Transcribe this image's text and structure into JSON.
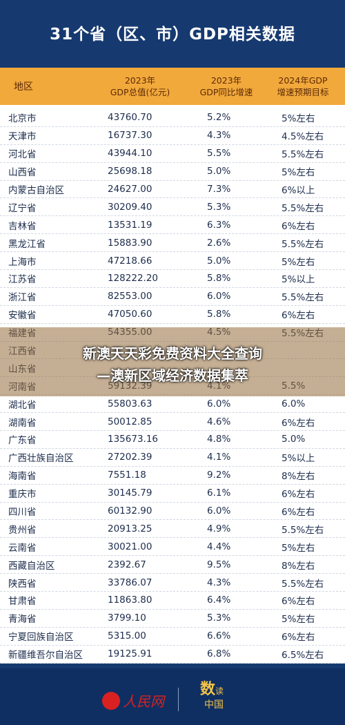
{
  "title": "31个省（区、市）GDP相关数据",
  "headers": {
    "region": "地区",
    "gdp_line1": "2023年",
    "gdp_line2": "GDP总值(亿元)",
    "growth_line1": "2023年",
    "growth_line2": "GDP同比增速",
    "target_line1": "2024年GDP",
    "target_line2": "增速预期目标"
  },
  "rows": [
    {
      "region": "北京市",
      "gdp": "43760.70",
      "growth": "5.2%",
      "target": "5%左右"
    },
    {
      "region": "天津市",
      "gdp": "16737.30",
      "growth": "4.3%",
      "target": "4.5%左右"
    },
    {
      "region": "河北省",
      "gdp": "43944.10",
      "growth": "5.5%",
      "target": "5.5%左右"
    },
    {
      "region": "山西省",
      "gdp": "25698.18",
      "growth": "5.0%",
      "target": "5%左右"
    },
    {
      "region": "内蒙古自治区",
      "gdp": "24627.00",
      "growth": "7.3%",
      "target": "6%以上"
    },
    {
      "region": "辽宁省",
      "gdp": "30209.40",
      "growth": "5.3%",
      "target": "5.5%左右"
    },
    {
      "region": "吉林省",
      "gdp": "13531.19",
      "growth": "6.3%",
      "target": "6%左右"
    },
    {
      "region": "黑龙江省",
      "gdp": "15883.90",
      "growth": "2.6%",
      "target": "5.5%左右"
    },
    {
      "region": "上海市",
      "gdp": "47218.66",
      "growth": "5.0%",
      "target": "5%左右"
    },
    {
      "region": "江苏省",
      "gdp": "128222.20",
      "growth": "5.8%",
      "target": "5%以上"
    },
    {
      "region": "浙江省",
      "gdp": "82553.00",
      "growth": "6.0%",
      "target": "5.5%左右"
    },
    {
      "region": "安徽省",
      "gdp": "47050.60",
      "growth": "5.8%",
      "target": "6%左右"
    },
    {
      "region": "福建省",
      "gdp": "54355.00",
      "growth": "4.5%",
      "target": "5.5%左右"
    },
    {
      "region": "江西省",
      "gdp": "",
      "growth": "",
      "target": ""
    },
    {
      "region": "山东省",
      "gdp": "",
      "growth": "",
      "target": ""
    },
    {
      "region": "河南省",
      "gdp": "59132.39",
      "growth": "4.1%",
      "target": "5.5%"
    },
    {
      "region": "湖北省",
      "gdp": "55803.63",
      "growth": "6.0%",
      "target": "6.0%"
    },
    {
      "region": "湖南省",
      "gdp": "50012.85",
      "growth": "4.6%",
      "target": "6%左右"
    },
    {
      "region": "广东省",
      "gdp": "135673.16",
      "growth": "4.8%",
      "target": "5.0%"
    },
    {
      "region": "广西壮族自治区",
      "gdp": "27202.39",
      "growth": "4.1%",
      "target": "5%以上"
    },
    {
      "region": "海南省",
      "gdp": "7551.18",
      "growth": "9.2%",
      "target": "8%左右"
    },
    {
      "region": "重庆市",
      "gdp": "30145.79",
      "growth": "6.1%",
      "target": "6%左右"
    },
    {
      "region": "四川省",
      "gdp": "60132.90",
      "growth": "6.0%",
      "target": "6%左右"
    },
    {
      "region": "贵州省",
      "gdp": "20913.25",
      "growth": "4.9%",
      "target": "5.5%左右"
    },
    {
      "region": "云南省",
      "gdp": "30021.00",
      "growth": "4.4%",
      "target": "5%左右"
    },
    {
      "region": "西藏自治区",
      "gdp": "2392.67",
      "growth": "9.5%",
      "target": "8%左右"
    },
    {
      "region": "陕西省",
      "gdp": "33786.07",
      "growth": "4.3%",
      "target": "5.5%左右"
    },
    {
      "region": "甘肃省",
      "gdp": "11863.80",
      "growth": "6.4%",
      "target": "6%左右"
    },
    {
      "region": "青海省",
      "gdp": "3799.10",
      "growth": "5.3%",
      "target": "5%左右"
    },
    {
      "region": "宁夏回族自治区",
      "gdp": "5315.00",
      "growth": "6.6%",
      "target": "6%左右"
    },
    {
      "region": "新疆维吾尔自治区",
      "gdp": "19125.91",
      "growth": "6.8%",
      "target": "6.5%左右"
    }
  ],
  "overlay": {
    "line1": "新澳天天彩免费资料大全查询",
    "line2": "—澳新区域经济数据集萃"
  },
  "footer": {
    "logo1_text": "人民网",
    "logo2_a": "数",
    "logo2_b": "读",
    "logo2_c": "中国"
  }
}
